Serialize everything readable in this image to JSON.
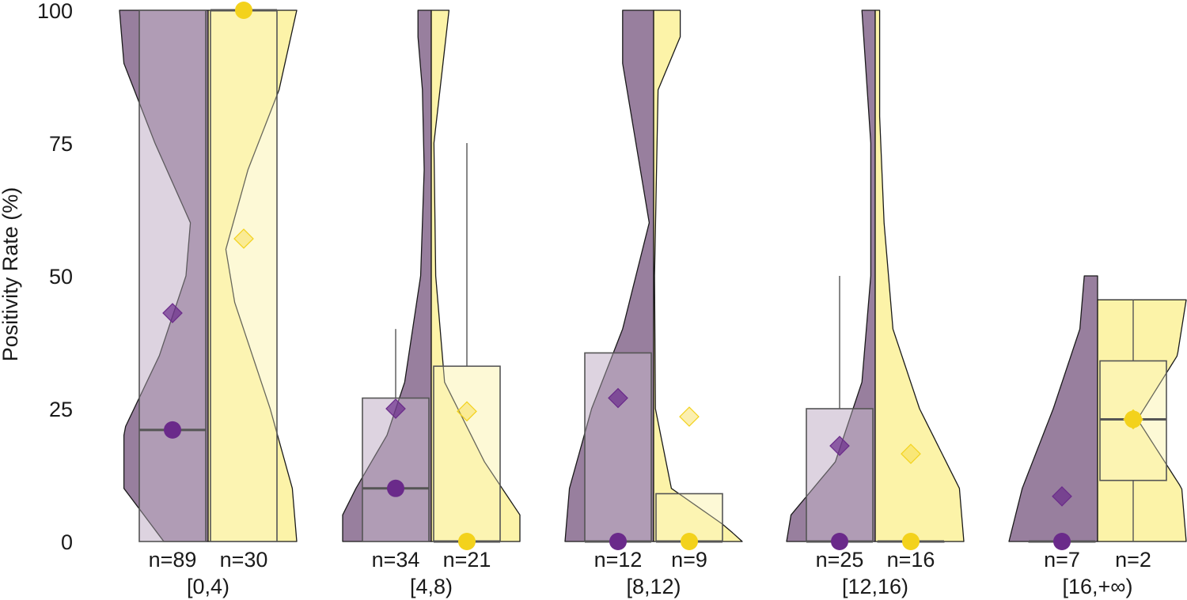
{
  "chart_data": {
    "type": "violin-box",
    "title": "",
    "ylabel": "Positivity Rate (%)",
    "xlabel": "",
    "ylim": [
      0,
      100
    ],
    "yticks": [
      0,
      25,
      50,
      75,
      100
    ],
    "grid": false,
    "legend": "none",
    "colors": {
      "purple_violin": "#967c9c",
      "purple_box": "#ddd3e0",
      "purple_point": "#6a2a8a",
      "yellow_violin": "#fbef8f",
      "yellow_box": "#fdf9d6",
      "yellow_point": "#f3d21c",
      "outline": "#1a1a1a",
      "box_outline": "#555555"
    },
    "groups": [
      {
        "category": "[0,4)",
        "series": [
          {
            "n_label": "n=89",
            "box": {
              "q1": 0,
              "median": 21,
              "q3": 100,
              "whisker_low": 0,
              "whisker_high": 100
            },
            "mean": 43,
            "mode_point": 21,
            "violin": [
              [
                0,
                0.5
              ],
              [
                10,
                0.95
              ],
              [
                21,
                0.95
              ],
              [
                35,
                0.55
              ],
              [
                50,
                0.25
              ],
              [
                60,
                0.2
              ],
              [
                75,
                0.6
              ],
              [
                90,
                0.95
              ],
              [
                100,
                1
              ]
            ]
          },
          {
            "n_label": "n=30",
            "box": {
              "q1": 0,
              "median": 100,
              "q3": 100,
              "whisker_low": 0,
              "whisker_high": 100
            },
            "mean": 57,
            "mode_point": 100,
            "violin": [
              [
                0,
                1
              ],
              [
                10,
                0.95
              ],
              [
                25,
                0.7
              ],
              [
                45,
                0.3
              ],
              [
                55,
                0.2
              ],
              [
                70,
                0.45
              ],
              [
                85,
                0.8
              ],
              [
                100,
                1
              ]
            ]
          }
        ]
      },
      {
        "category": "[4,8)",
        "series": [
          {
            "n_label": "n=34",
            "box": {
              "q1": 0,
              "median": 10,
              "q3": 27,
              "whisker_low": 0,
              "whisker_high": 40
            },
            "mean": 25,
            "mode_point": 10,
            "violin": [
              [
                0,
                1
              ],
              [
                5,
                1
              ],
              [
                10,
                0.85
              ],
              [
                20,
                0.5
              ],
              [
                30,
                0.3
              ],
              [
                50,
                0.12
              ],
              [
                70,
                0.08
              ],
              [
                85,
                0.1
              ],
              [
                95,
                0.15
              ],
              [
                100,
                0.15
              ]
            ]
          },
          {
            "n_label": "n=21",
            "box": {
              "q1": 0,
              "median": 0,
              "q3": 33,
              "whisker_low": 0,
              "whisker_high": 75
            },
            "mean": 24.5,
            "mode_point": 0,
            "violin": [
              [
                0,
                1
              ],
              [
                5,
                1
              ],
              [
                15,
                0.6
              ],
              [
                30,
                0.15
              ],
              [
                50,
                0.05
              ],
              [
                75,
                0.03
              ],
              [
                100,
                0.2
              ]
            ]
          }
        ]
      },
      {
        "category": "[8,12)",
        "series": [
          {
            "n_label": "n=12",
            "box": {
              "q1": 0,
              "median": 0,
              "q3": 35.5,
              "whisker_low": 0,
              "whisker_high": 35.5
            },
            "mean": 27,
            "mode_point": 0,
            "violin": [
              [
                0,
                1
              ],
              [
                10,
                0.95
              ],
              [
                25,
                0.7
              ],
              [
                40,
                0.35
              ],
              [
                60,
                0.05
              ],
              [
                75,
                0.2
              ],
              [
                90,
                0.35
              ],
              [
                100,
                0.35
              ]
            ]
          },
          {
            "n_label": "n=9",
            "box": {
              "q1": 0,
              "median": 0,
              "q3": 9,
              "whisker_low": 0,
              "whisker_high": 9
            },
            "mean": 23.5,
            "mode_point": 0,
            "violin": [
              [
                0,
                1
              ],
              [
                3,
                0.8
              ],
              [
                10,
                0.2
              ],
              [
                25,
                0.02
              ],
              [
                50,
                0.01
              ],
              [
                85,
                0.05
              ],
              [
                95,
                0.3
              ],
              [
                100,
                0.3
              ]
            ]
          }
        ]
      },
      {
        "category": "[12,16)",
        "series": [
          {
            "n_label": "n=25",
            "box": {
              "q1": 0,
              "median": 0,
              "q3": 25,
              "whisker_low": 0,
              "whisker_high": 50
            },
            "mean": 18,
            "mode_point": 0,
            "violin": [
              [
                0,
                1
              ],
              [
                5,
                0.95
              ],
              [
                15,
                0.45
              ],
              [
                30,
                0.15
              ],
              [
                50,
                0.05
              ],
              [
                75,
                0.05
              ],
              [
                100,
                0.15
              ]
            ]
          },
          {
            "n_label": "n=16",
            "box": {
              "q1": 0,
              "median": 0,
              "q3": 0,
              "whisker_low": 0,
              "whisker_high": 0
            },
            "mean": 16.5,
            "mode_point": 0,
            "violin": [
              [
                0,
                1
              ],
              [
                10,
                0.95
              ],
              [
                25,
                0.5
              ],
              [
                40,
                0.2
              ],
              [
                60,
                0.1
              ],
              [
                80,
                0.05
              ],
              [
                100,
                0.05
              ]
            ]
          }
        ]
      },
      {
        "category": "[16,+∞)",
        "series": [
          {
            "n_label": "n=7",
            "box": {
              "q1": 0,
              "median": 0,
              "q3": 0,
              "whisker_low": 0,
              "whisker_high": 0
            },
            "mean": 8.5,
            "mode_point": 0,
            "violin": [
              [
                0,
                1
              ],
              [
                10,
                0.85
              ],
              [
                25,
                0.5
              ],
              [
                40,
                0.2
              ],
              [
                50,
                0.15
              ]
            ]
          },
          {
            "n_label": "n=2",
            "box": {
              "q1": 11.5,
              "median": 23,
              "q3": 34,
              "whisker_low": 0,
              "whisker_high": 45.5
            },
            "mean": 23,
            "mode_point": 23,
            "violin": [
              [
                0,
                1
              ],
              [
                10,
                0.95
              ],
              [
                23,
                0.45
              ],
              [
                35,
                0.9
              ],
              [
                45.5,
                1
              ]
            ]
          }
        ]
      }
    ]
  }
}
